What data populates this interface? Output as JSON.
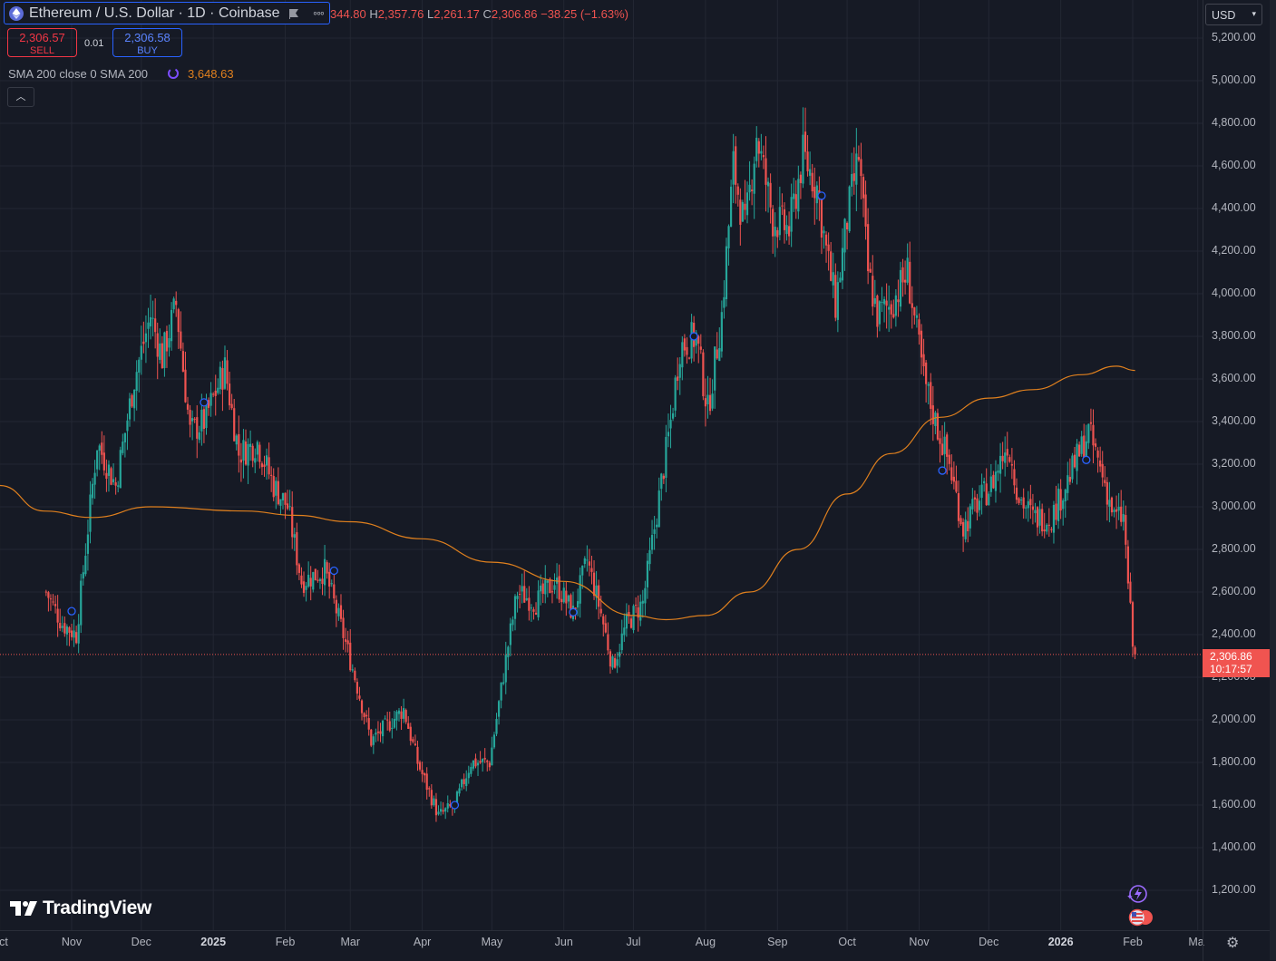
{
  "symbol": {
    "title": "Ethereum / U.S. Dollar · 1D · Coinbase",
    "icon": "ethereum-logo-icon"
  },
  "ohlc": {
    "o_label": "",
    "o_value": "344.80",
    "h_label": "H",
    "h_value": "2,357.76",
    "l_label": "L",
    "l_value": "2,261.17",
    "c_label": "C",
    "c_value": "2,306.86",
    "change": "−38.25 (−1.63%)"
  },
  "trade": {
    "sell_price": "2,306.57",
    "sell_label": "SELL",
    "spread": "0.01",
    "buy_price": "2,306.58",
    "buy_label": "BUY"
  },
  "indicator": {
    "label": "SMA 200 close 0 SMA 200",
    "value": "3,648.63"
  },
  "currency": "USD",
  "price_axis": {
    "labels": [
      "5,200.00",
      "5,000.00",
      "4,800.00",
      "4,600.00",
      "4,400.00",
      "4,200.00",
      "4,000.00",
      "3,800.00",
      "3,600.00",
      "3,400.00",
      "3,200.00",
      "3,000.00",
      "2,800.00",
      "2,600.00",
      "2,400.00",
      "2,200.00",
      "2,000.00",
      "1,800.00",
      "1,600.00",
      "1,400.00",
      "1,200.00"
    ]
  },
  "time_axis": {
    "labels": [
      "ct",
      "Nov",
      "Dec",
      "2025",
      "Feb",
      "Mar",
      "Apr",
      "May",
      "Jun",
      "Jul",
      "Aug",
      "Sep",
      "Oct",
      "Nov",
      "Dec",
      "2026",
      "Feb",
      "Ma"
    ]
  },
  "last_price": {
    "price": "2,306.86",
    "countdown": "10:17:57"
  },
  "branding": "TradingView",
  "colors": {
    "background": "#161a25",
    "up": "#26a69a",
    "down": "#ef5350",
    "sma": "#e0801e",
    "accent": "#2962ff"
  },
  "chart_data": {
    "type": "candlestick",
    "title": "Ethereum / U.S. Dollar · 1D · Coinbase",
    "ylim": [
      1100,
      5300
    ],
    "y_ticks": [
      1200,
      1400,
      1600,
      1800,
      2000,
      2200,
      2400,
      2600,
      2800,
      3000,
      3200,
      3400,
      3600,
      3800,
      4000,
      4200,
      4400,
      4600,
      4800,
      5000,
      5200
    ],
    "x_labels": [
      "Nov",
      "Dec",
      "2025",
      "Feb",
      "Mar",
      "Apr",
      "May",
      "Jun",
      "Jul",
      "Aug",
      "Sep",
      "Oct",
      "Nov",
      "Dec",
      "2026",
      "Feb"
    ],
    "close_path": [
      [
        "2024-10-21",
        2600
      ],
      [
        "2024-10-28",
        2450
      ],
      [
        "2024-11-03",
        2400
      ],
      [
        "2024-11-08",
        2900
      ],
      [
        "2024-11-12",
        3300
      ],
      [
        "2024-11-20",
        3100
      ],
      [
        "2024-11-28",
        3600
      ],
      [
        "2024-12-05",
        3900
      ],
      [
        "2024-12-10",
        3700
      ],
      [
        "2024-12-16",
        3950
      ],
      [
        "2024-12-22",
        3350
      ],
      [
        "2024-12-28",
        3400
      ],
      [
        "2025-01-06",
        3650
      ],
      [
        "2025-01-12",
        3250
      ],
      [
        "2025-01-20",
        3300
      ],
      [
        "2025-01-27",
        3100
      ],
      [
        "2025-02-02",
        3000
      ],
      [
        "2025-02-08",
        2650
      ],
      [
        "2025-02-18",
        2700
      ],
      [
        "2025-02-26",
        2400
      ],
      [
        "2025-03-03",
        2200
      ],
      [
        "2025-03-10",
        1900
      ],
      [
        "2025-03-24",
        2050
      ],
      [
        "2025-03-30",
        1800
      ],
      [
        "2025-04-08",
        1550
      ],
      [
        "2025-04-15",
        1600
      ],
      [
        "2025-04-22",
        1800
      ],
      [
        "2025-04-30",
        1800
      ],
      [
        "2025-05-08",
        2350
      ],
      [
        "2025-05-12",
        2600
      ],
      [
        "2025-05-20",
        2550
      ],
      [
        "2025-05-28",
        2650
      ],
      [
        "2025-06-05",
        2500
      ],
      [
        "2025-06-11",
        2750
      ],
      [
        "2025-06-17",
        2500
      ],
      [
        "2025-06-22",
        2250
      ],
      [
        "2025-06-28",
        2450
      ],
      [
        "2025-07-05",
        2550
      ],
      [
        "2025-07-10",
        2900
      ],
      [
        "2025-07-17",
        3400
      ],
      [
        "2025-07-21",
        3750
      ],
      [
        "2025-07-28",
        3800
      ],
      [
        "2025-08-02",
        3450
      ],
      [
        "2025-08-08",
        3900
      ],
      [
        "2025-08-13",
        4600
      ],
      [
        "2025-08-18",
        4300
      ],
      [
        "2025-08-23",
        4750
      ],
      [
        "2025-08-30",
        4350
      ],
      [
        "2025-09-06",
        4300
      ],
      [
        "2025-09-12",
        4650
      ],
      [
        "2025-09-18",
        4500
      ],
      [
        "2025-09-22",
        4200
      ],
      [
        "2025-09-26",
        3950
      ],
      [
        "2025-10-01",
        4350
      ],
      [
        "2025-10-06",
        4650
      ],
      [
        "2025-10-10",
        4100
      ],
      [
        "2025-10-14",
        3900
      ],
      [
        "2025-10-20",
        3950
      ],
      [
        "2025-10-27",
        4100
      ],
      [
        "2025-11-03",
        3600
      ],
      [
        "2025-11-08",
        3400
      ],
      [
        "2025-11-14",
        3200
      ],
      [
        "2025-11-20",
        2900
      ],
      [
        "2025-11-25",
        3000
      ],
      [
        "2025-12-02",
        3100
      ],
      [
        "2025-12-09",
        3300
      ],
      [
        "2025-12-14",
        3050
      ],
      [
        "2025-12-20",
        2950
      ],
      [
        "2025-12-28",
        2950
      ],
      [
        "2026-01-05",
        3150
      ],
      [
        "2026-01-13",
        3350
      ],
      [
        "2026-01-19",
        3150
      ],
      [
        "2026-01-24",
        2950
      ],
      [
        "2026-01-28",
        2950
      ],
      [
        "2026-02-01",
        2350
      ],
      [
        "2026-02-02",
        2307
      ]
    ],
    "sma200_path": [
      [
        "2024-10-01",
        3100
      ],
      [
        "2024-10-20",
        2980
      ],
      [
        "2024-11-10",
        2950
      ],
      [
        "2024-12-05",
        3000
      ],
      [
        "2025-01-15",
        2980
      ],
      [
        "2025-02-05",
        2960
      ],
      [
        "2025-03-01",
        2930
      ],
      [
        "2025-04-01",
        2850
      ],
      [
        "2025-05-01",
        2740
      ],
      [
        "2025-06-01",
        2650
      ],
      [
        "2025-07-01",
        2490
      ],
      [
        "2025-07-15",
        2470
      ],
      [
        "2025-08-01",
        2490
      ],
      [
        "2025-08-20",
        2600
      ],
      [
        "2025-09-10",
        2800
      ],
      [
        "2025-10-01",
        3060
      ],
      [
        "2025-10-20",
        3250
      ],
      [
        "2025-11-10",
        3420
      ],
      [
        "2025-12-01",
        3510
      ],
      [
        "2025-12-20",
        3550
      ],
      [
        "2026-01-10",
        3620
      ],
      [
        "2026-01-25",
        3660
      ],
      [
        "2026-02-02",
        3640
      ]
    ],
    "last_close": 2306.86
  }
}
